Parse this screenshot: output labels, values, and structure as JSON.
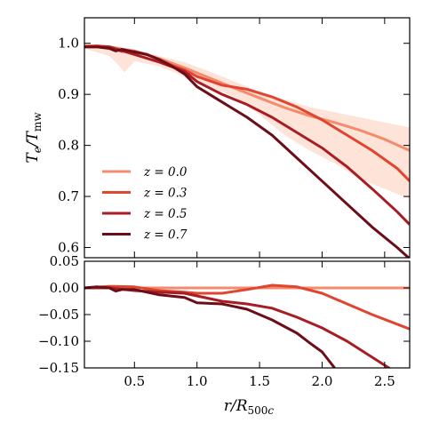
{
  "chart_data": [
    {
      "type": "line",
      "panel": "top",
      "ylabel": "T_e/T_mw",
      "xlim": [
        0.1,
        2.7
      ],
      "ylim": [
        0.58,
        1.05
      ],
      "yticks": [
        0.6,
        0.7,
        0.8,
        0.9,
        1.0
      ],
      "ytick_labels": [
        "0.6",
        "0.7",
        "0.8",
        "0.9",
        "1.0"
      ],
      "grid": false,
      "legend": {
        "placement": "lower-left"
      },
      "band": {
        "color": "#fde3d8",
        "x": [
          0.1,
          0.3,
          0.38,
          0.42,
          0.5,
          0.7,
          0.9,
          1.1,
          1.3,
          1.5,
          1.7,
          1.9,
          2.1,
          2.3,
          2.5,
          2.7
        ],
        "upper": [
          1.0,
          0.995,
          0.99,
          0.99,
          0.988,
          0.975,
          0.963,
          0.945,
          0.925,
          0.905,
          0.89,
          0.875,
          0.865,
          0.855,
          0.845,
          0.835
        ],
        "lower": [
          0.99,
          0.975,
          0.955,
          0.943,
          0.965,
          0.955,
          0.935,
          0.915,
          0.895,
          0.86,
          0.82,
          0.79,
          0.765,
          0.735,
          0.715,
          0.695
        ]
      },
      "series": [
        {
          "name": "z = 0.0",
          "color": "#f38b6c",
          "x": [
            0.1,
            0.2,
            0.3,
            0.5,
            0.7,
            0.9,
            1.1,
            1.3,
            1.5,
            1.7,
            1.9,
            2.1,
            2.3,
            2.5,
            2.7
          ],
          "y": [
            0.995,
            0.995,
            0.993,
            0.985,
            0.97,
            0.952,
            0.932,
            0.912,
            0.893,
            0.874,
            0.858,
            0.845,
            0.83,
            0.812,
            0.79
          ]
        },
        {
          "name": "z = 0.3",
          "color": "#e0452f",
          "x": [
            0.1,
            0.2,
            0.3,
            0.4,
            0.5,
            0.6,
            0.7,
            0.8,
            0.9,
            1.0,
            1.2,
            1.4,
            1.6,
            1.8,
            2.0,
            2.2,
            2.4,
            2.6,
            2.7
          ],
          "y": [
            0.993,
            0.995,
            0.993,
            0.984,
            0.984,
            0.978,
            0.968,
            0.957,
            0.948,
            0.935,
            0.918,
            0.91,
            0.895,
            0.875,
            0.85,
            0.82,
            0.79,
            0.755,
            0.73
          ]
        },
        {
          "name": "z = 0.5",
          "color": "#a81d24",
          "x": [
            0.1,
            0.3,
            0.5,
            0.7,
            0.9,
            1.0,
            1.2,
            1.4,
            1.6,
            1.8,
            2.0,
            2.2,
            2.4,
            2.6,
            2.7
          ],
          "y": [
            0.993,
            0.993,
            0.978,
            0.963,
            0.945,
            0.925,
            0.9,
            0.88,
            0.855,
            0.825,
            0.795,
            0.758,
            0.715,
            0.67,
            0.645
          ]
        },
        {
          "name": "z = 0.7",
          "color": "#6b0e18",
          "x": [
            0.1,
            0.2,
            0.3,
            0.35,
            0.4,
            0.5,
            0.6,
            0.7,
            0.8,
            0.9,
            1.0,
            1.2,
            1.4,
            1.6,
            1.8,
            2.0,
            2.2,
            2.4,
            2.6,
            2.7
          ],
          "y": [
            0.993,
            0.993,
            0.99,
            0.985,
            0.988,
            0.983,
            0.978,
            0.968,
            0.955,
            0.94,
            0.915,
            0.885,
            0.855,
            0.82,
            0.775,
            0.73,
            0.685,
            0.64,
            0.6,
            0.578
          ]
        }
      ]
    },
    {
      "type": "line",
      "panel": "bottom",
      "xlabel": "r/R_500c",
      "xlim": [
        0.1,
        2.7
      ],
      "ylim": [
        -0.15,
        0.05
      ],
      "xticks": [
        0.5,
        1.0,
        1.5,
        2.0,
        2.5
      ],
      "xtick_labels": [
        "0.5",
        "1.0",
        "1.5",
        "2.0",
        "2.5"
      ],
      "yticks": [
        -0.15,
        -0.1,
        -0.05,
        0.0,
        0.05
      ],
      "ytick_labels": [
        "−0.15",
        "−0.10",
        "−0.05",
        "0.00",
        "0.05"
      ],
      "grid": false,
      "series": [
        {
          "name": "z = 0.0",
          "color": "#f38b6c",
          "x": [
            0.1,
            2.7
          ],
          "y": [
            0.0,
            0.0
          ]
        },
        {
          "name": "z = 0.3",
          "color": "#e0452f",
          "x": [
            0.1,
            0.3,
            0.5,
            0.7,
            0.9,
            1.0,
            1.2,
            1.4,
            1.6,
            1.8,
            2.0,
            2.2,
            2.4,
            2.6,
            2.7
          ],
          "y": [
            0.0,
            0.003,
            0.002,
            -0.005,
            -0.008,
            -0.01,
            -0.01,
            -0.003,
            0.005,
            0.002,
            -0.01,
            -0.03,
            -0.05,
            -0.068,
            -0.077
          ]
        },
        {
          "name": "z = 0.5",
          "color": "#a81d24",
          "x": [
            0.1,
            0.3,
            0.5,
            0.7,
            0.9,
            1.0,
            1.2,
            1.4,
            1.6,
            1.8,
            2.0,
            2.2,
            2.4,
            2.6,
            2.7
          ],
          "y": [
            0.0,
            0.0,
            -0.005,
            -0.008,
            -0.01,
            -0.015,
            -0.025,
            -0.03,
            -0.038,
            -0.055,
            -0.075,
            -0.1,
            -0.13,
            -0.16,
            -0.18
          ]
        },
        {
          "name": "z = 0.7",
          "color": "#6b0e18",
          "x": [
            0.1,
            0.2,
            0.3,
            0.35,
            0.4,
            0.5,
            0.7,
            0.9,
            1.0,
            1.2,
            1.4,
            1.6,
            1.8,
            1.9,
            2.0,
            2.1
          ],
          "y": [
            0.0,
            0.002,
            0.0,
            -0.006,
            -0.003,
            -0.003,
            -0.013,
            -0.018,
            -0.028,
            -0.03,
            -0.04,
            -0.06,
            -0.085,
            -0.103,
            -0.12,
            -0.15
          ]
        }
      ]
    }
  ]
}
